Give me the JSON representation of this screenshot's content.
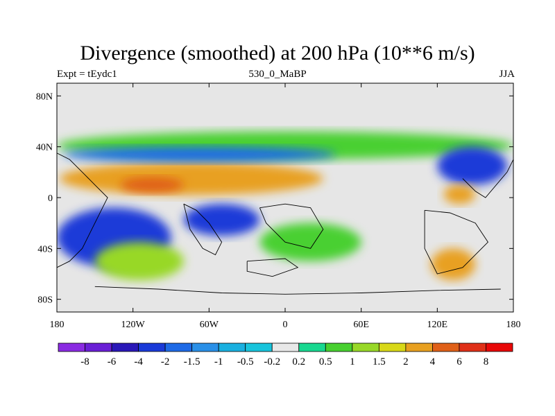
{
  "chart_data": {
    "type": "heatmap",
    "title": "Divergence (smoothed) at 200 hPa (10**6 m/s)",
    "subtitle_left": "Expt = tEydc1",
    "subtitle_center": "530_0_MaBP",
    "subtitle_right": "JJA",
    "x_ticks": [
      {
        "value": -180,
        "label": "180"
      },
      {
        "value": -120,
        "label": "120W"
      },
      {
        "value": -60,
        "label": "60W"
      },
      {
        "value": 0,
        "label": "0"
      },
      {
        "value": 60,
        "label": "60E"
      },
      {
        "value": 120,
        "label": "120E"
      },
      {
        "value": 180,
        "label": "180"
      }
    ],
    "y_ticks": [
      {
        "value": 80,
        "label": "80N"
      },
      {
        "value": 40,
        "label": "40N"
      },
      {
        "value": 0,
        "label": "0"
      },
      {
        "value": -40,
        "label": "40S"
      },
      {
        "value": -80,
        "label": "80S"
      }
    ],
    "xlim": [
      -180,
      180
    ],
    "ylim": [
      -90,
      90
    ],
    "colorbar": {
      "labels": [
        "-8",
        "-6",
        "-4",
        "-2",
        "-1.5",
        "-1",
        "-0.5",
        "-0.2",
        "0.2",
        "0.5",
        "1",
        "1.5",
        "2",
        "4",
        "6",
        "8"
      ],
      "colors": [
        "#8a2be2",
        "#6a1fd6",
        "#2a18b8",
        "#1a3ad8",
        "#1e6ae6",
        "#2a90e8",
        "#1ab0e0",
        "#18c4dc",
        "#e8e8e8",
        "#18d890",
        "#48d030",
        "#98d828",
        "#d8d818",
        "#e8a020",
        "#e06018",
        "#e03018",
        "#e80808"
      ]
    },
    "regions": [
      {
        "name": "ne-green-band",
        "x": [
          -180,
          180
        ],
        "y": [
          30,
          52
        ],
        "level": 0.6
      },
      {
        "name": "eq-orange-band",
        "x": [
          -178,
          30
        ],
        "y": [
          2,
          28
        ],
        "level": 2.5
      },
      {
        "name": "eq-dark-orange-core",
        "x": [
          -130,
          -80
        ],
        "y": [
          4,
          16
        ],
        "level": 5
      },
      {
        "name": "nh-blue-band",
        "x": [
          -175,
          40
        ],
        "y": [
          28,
          40
        ],
        "level": -1.5
      },
      {
        "name": "sh-blue-band",
        "x": [
          -180,
          -90
        ],
        "y": [
          -55,
          -8
        ],
        "level": -3
      },
      {
        "name": "central-blue-patch",
        "x": [
          -80,
          -20
        ],
        "y": [
          -30,
          -5
        ],
        "level": -2.5
      },
      {
        "name": "east-blue-patch",
        "x": [
          120,
          175
        ],
        "y": [
          10,
          40
        ],
        "level": -3
      },
      {
        "name": "west-pacific-orange",
        "x": [
          125,
          150
        ],
        "y": [
          -5,
          10
        ],
        "level": 3
      },
      {
        "name": "sh-south-green",
        "x": [
          -150,
          -80
        ],
        "y": [
          -65,
          -35
        ],
        "level": 1.5
      },
      {
        "name": "south-indian-orange",
        "x": [
          115,
          150
        ],
        "y": [
          -65,
          -40
        ],
        "level": 2.5
      },
      {
        "name": "south-atlantic-mix",
        "x": [
          -20,
          60
        ],
        "y": [
          -50,
          -20
        ],
        "level": 1
      }
    ]
  }
}
